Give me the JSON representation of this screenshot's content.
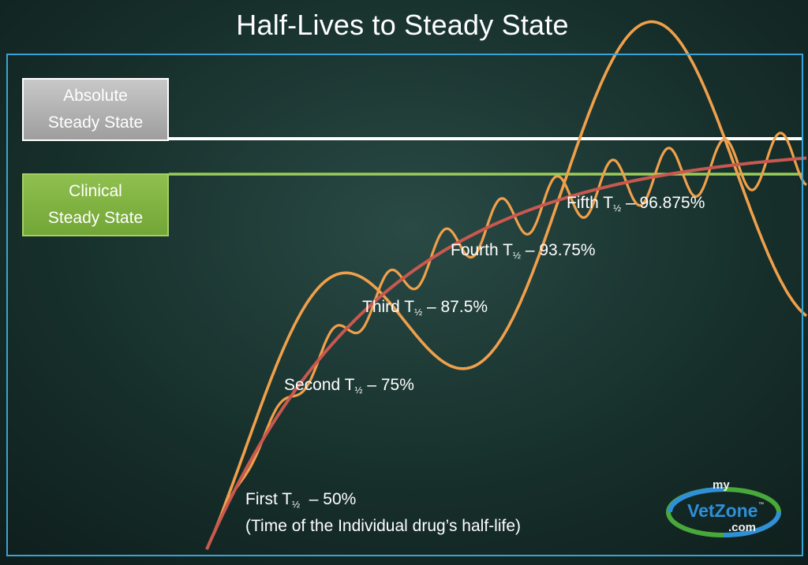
{
  "title": "Half-Lives to Steady State",
  "boxes": {
    "absolute": {
      "line1": "Absolute",
      "line2": "Steady State"
    },
    "clinical": {
      "line1": "Clinical",
      "line2": "Steady State"
    }
  },
  "annotations": [
    {
      "prefix": "First T",
      "sub": "½",
      "suffix": "  – 50%"
    },
    {
      "prefix": "Second T",
      "sub": "½",
      "suffix": " – 75%"
    },
    {
      "prefix": "Third T",
      "sub": "½",
      "suffix": " – 87.5%"
    },
    {
      "prefix": "Fourth T",
      "sub": "½",
      "suffix": " – 93.75%"
    },
    {
      "prefix": "Fifth T",
      "sub": "½",
      "suffix": " – 96.875%"
    }
  ],
  "footnote": "(Time of the Individual drug’s half-life)",
  "logo": {
    "top": "my",
    "middle": "VetZone",
    "tm": "™",
    "bottom": ".com"
  },
  "colors": {
    "background": "#1e3a36",
    "frame": "#3aa3d6",
    "absolute_line": "#ffffff",
    "clinical_line": "#9acd5a",
    "absolute_box": "#b4b4b4",
    "clinical_box": "#80b444",
    "mean_curve": "#c9584f",
    "oscillation_curves": "#f0a04b"
  },
  "chart_data": {
    "type": "line",
    "title": "Half-Lives to Steady State",
    "xlabel": "",
    "ylabel": "",
    "grid": false,
    "reference_lines": [
      {
        "name": "Absolute Steady State",
        "y": 100
      },
      {
        "name": "Clinical Steady State",
        "y": 96
      }
    ],
    "milestones": [
      {
        "half_lives": 1,
        "percent": 50
      },
      {
        "half_lives": 2,
        "percent": 75
      },
      {
        "half_lives": 3,
        "percent": 87.5
      },
      {
        "half_lives": 4,
        "percent": 93.75
      },
      {
        "half_lives": 5,
        "percent": 96.875
      }
    ],
    "series": [
      {
        "role": "mean",
        "function": "100*(1-2^-t)",
        "color": "#c9584f"
      },
      {
        "role": "oscillating",
        "dose_cycles_per_half_life": 2.2,
        "relative_amplitude": 0.07,
        "color": "#f0a04b"
      },
      {
        "role": "oscillating",
        "dose_cycles_per_half_life": 0.35,
        "relative_amplitude": 0.42,
        "color": "#f0a04b"
      }
    ]
  }
}
